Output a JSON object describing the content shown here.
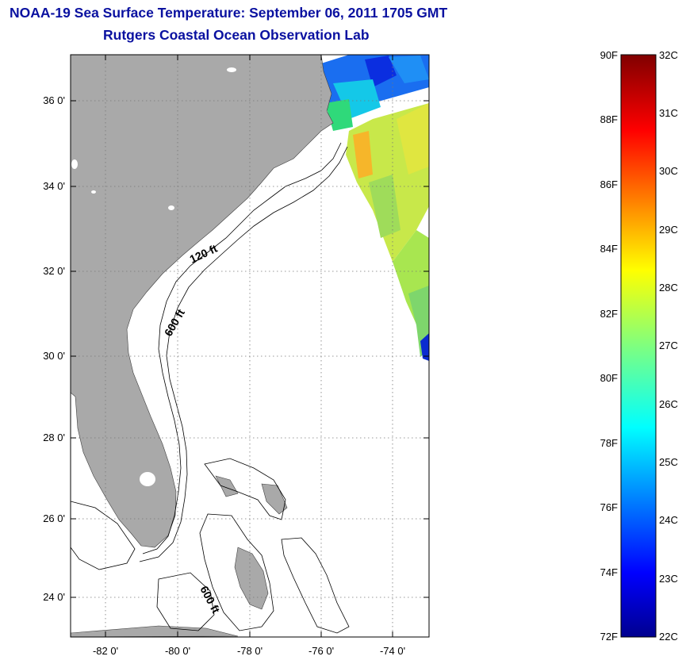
{
  "title": {
    "line1": "NOAA-19 Sea Surface Temperature:  September 06, 2011 1705 GMT",
    "line2": "Rutgers Coastal Ocean Observation Lab"
  },
  "map": {
    "x_ticks": [
      "-82 0'",
      "-80 0'",
      "-78 0'",
      "-76 0'",
      "-74 0'"
    ],
    "y_ticks": [
      "36 0'",
      "34 0'",
      "32 0'",
      "30 0'",
      "28 0'",
      "26 0'",
      "24 0'"
    ],
    "contour_labels": [
      "120 ft",
      "600 ft",
      "600 ft"
    ],
    "land_color": "#a9a9a9"
  },
  "colorbar": {
    "fahrenheit_labels": [
      "90F",
      "88F",
      "86F",
      "84F",
      "82F",
      "80F",
      "78F",
      "76F",
      "74F",
      "72F"
    ],
    "celsius_labels": [
      "32C",
      "31C",
      "30C",
      "29C",
      "28C",
      "27C",
      "26C",
      "25C",
      "24C",
      "23C",
      "22C"
    ],
    "range_celsius": [
      22,
      32
    ],
    "colormap": "jet"
  }
}
